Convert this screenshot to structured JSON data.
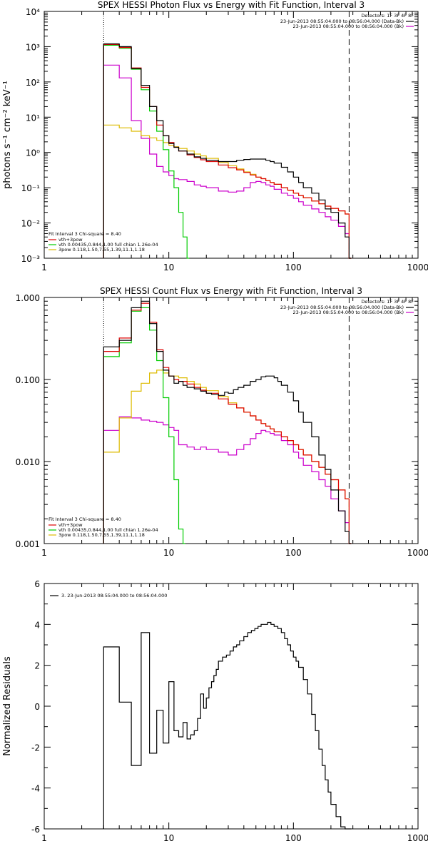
{
  "chart_data": [
    {
      "type": "line",
      "title": "SPEX HESSI Photon Flux vs Energy with Fit Function, Interval 3",
      "xlabel": "",
      "ylabel": "photons s⁻¹ cm⁻² keV⁻¹",
      "xscale": "log",
      "yscale": "log",
      "xlim": [
        1,
        1000
      ],
      "ylim": [
        0.001,
        10000
      ],
      "xticklabels": [
        "1",
        "10",
        "100",
        "1000"
      ],
      "yticklabels": [
        "10⁻³",
        "10⁻²",
        "10⁻¹",
        "10⁰",
        "10¹",
        "10²",
        "10³",
        "10⁴"
      ],
      "vlines": [
        3,
        280
      ],
      "detectors": "Detectors: 1F 3F 4F 8F",
      "legend_top": [
        {
          "text": "23-Jun-2013 08:55:04.000 to 08:56:04.000 (Data-Bk)",
          "color": "#000000"
        },
        {
          "text": "23-Jun-2013 08:55:04.000 to 08:56:04.000 (Bk)",
          "color": "#cc00cc"
        }
      ],
      "fit_header": "Fit Interval 3   Chi-square = 8.40",
      "legend_bottom": [
        {
          "text": "vth+3pow",
          "color": "#dd0000"
        },
        {
          "text": "vth 0.00435,0.844,1.00  full chian 1.26e-04",
          "color": "#00cc00"
        },
        {
          "text": "3pow 0.118,1.50,7.55,1.39,11.1,1.18",
          "color": "#ddbb00"
        }
      ],
      "series": [
        {
          "name": "Data-Bk",
          "color": "#000000",
          "x": [
            3,
            4,
            5,
            6,
            7,
            8,
            9,
            10,
            11,
            12,
            14,
            16,
            18,
            20,
            25,
            30,
            35,
            40,
            45,
            50,
            55,
            60,
            65,
            70,
            80,
            90,
            100,
            110,
            120,
            140,
            160,
            180,
            200,
            230,
            260,
            280
          ],
          "y": [
            1200,
            1000,
            240,
            80,
            20,
            8,
            3,
            1.8,
            1.4,
            1.1,
            0.9,
            0.75,
            0.68,
            0.6,
            0.55,
            0.55,
            0.6,
            0.63,
            0.65,
            0.65,
            0.65,
            0.6,
            0.55,
            0.5,
            0.38,
            0.28,
            0.2,
            0.14,
            0.1,
            0.07,
            0.045,
            0.025,
            0.02,
            0.01,
            0.004,
            0.001
          ]
        },
        {
          "name": "vth+3pow",
          "color": "#dd0000",
          "x": [
            3,
            4,
            5,
            6,
            7,
            8,
            9,
            10,
            11,
            12,
            14,
            16,
            18,
            20,
            25,
            30,
            35,
            40,
            45,
            50,
            55,
            60,
            65,
            70,
            80,
            90,
            100,
            110,
            120,
            140,
            160,
            180,
            200,
            230,
            260,
            280
          ],
          "y": [
            1150,
            950,
            250,
            70,
            20,
            6,
            3,
            1.9,
            1.4,
            1.1,
            0.85,
            0.72,
            0.62,
            0.55,
            0.44,
            0.37,
            0.32,
            0.27,
            0.23,
            0.2,
            0.18,
            0.16,
            0.14,
            0.125,
            0.1,
            0.085,
            0.07,
            0.06,
            0.052,
            0.042,
            0.035,
            0.03,
            0.026,
            0.022,
            0.018,
            0.001
          ]
        },
        {
          "name": "vth",
          "color": "#00cc00",
          "x": [
            3,
            4,
            5,
            6,
            7,
            8,
            9,
            10,
            11,
            12,
            13,
            14
          ],
          "y": [
            1100,
            900,
            230,
            60,
            15,
            4,
            1.2,
            0.3,
            0.1,
            0.02,
            0.004,
            0.001
          ]
        },
        {
          "name": "3pow",
          "color": "#ddbb00",
          "x": [
            3,
            4,
            5,
            6,
            7,
            8,
            9,
            10,
            11,
            12,
            14,
            16,
            18,
            20,
            25,
            30,
            35,
            40,
            45,
            50,
            55,
            60,
            65,
            70,
            80,
            90,
            100,
            110,
            120,
            140,
            160,
            180,
            200,
            230,
            260,
            280
          ],
          "y": [
            6,
            5,
            4,
            3,
            2.6,
            2.2,
            1.9,
            1.6,
            1.45,
            1.3,
            1.1,
            0.9,
            0.8,
            0.68,
            0.52,
            0.42,
            0.34,
            0.28,
            0.24,
            0.2,
            0.18,
            0.16,
            0.14,
            0.125,
            0.1,
            0.085,
            0.07,
            0.06,
            0.052,
            0.042,
            0.035,
            0.03,
            0.026,
            0.022,
            0.018,
            0.001
          ]
        },
        {
          "name": "Bk",
          "color": "#cc00cc",
          "x": [
            3,
            4,
            5,
            6,
            7,
            8,
            9,
            10,
            11,
            12,
            14,
            16,
            18,
            20,
            25,
            30,
            35,
            40,
            45,
            50,
            55,
            60,
            65,
            70,
            80,
            90,
            100,
            110,
            120,
            140,
            160,
            180,
            200,
            230,
            260,
            280
          ],
          "y": [
            300,
            130,
            8,
            2.5,
            0.9,
            0.4,
            0.28,
            0.22,
            0.18,
            0.17,
            0.15,
            0.12,
            0.11,
            0.1,
            0.08,
            0.075,
            0.08,
            0.1,
            0.14,
            0.15,
            0.14,
            0.12,
            0.11,
            0.09,
            0.07,
            0.06,
            0.05,
            0.04,
            0.032,
            0.025,
            0.02,
            0.015,
            0.012,
            0.008,
            0.005,
            0.001
          ]
        }
      ]
    },
    {
      "type": "line",
      "title": "SPEX HESSI Count Flux vs Energy with Fit Function, Interval 3",
      "xlabel": "",
      "ylabel": "",
      "xscale": "log",
      "yscale": "log",
      "xlim": [
        1,
        1000
      ],
      "ylim": [
        0.001,
        1
      ],
      "xticklabels": [
        "1",
        "10",
        "100",
        "1000"
      ],
      "yticklabels": [
        "0.001",
        "0.010",
        "0.100",
        "1.000"
      ],
      "vlines": [
        3,
        280
      ],
      "detectors": "Detectors: 1F 3F 4F 8F",
      "legend_top": [
        {
          "text": "23-Jun-2013 08:55:04.000 to 08:56:04.000 (Data-Bk)",
          "color": "#000000"
        },
        {
          "text": "23-Jun-2013 08:55:04.000 to 08:56:04.000 (Bk)",
          "color": "#cc00cc"
        }
      ],
      "fit_header": "Fit Interval 3   Chi-square = 8.40",
      "legend_bottom": [
        {
          "text": "vth+3pow",
          "color": "#dd0000"
        },
        {
          "text": "vth 0.00435,0.844,1.00  full chian 1.26e-04",
          "color": "#00cc00"
        },
        {
          "text": "3pow 0.118,1.50,7.55,1.39,11.1,1.18",
          "color": "#ddbb00"
        }
      ],
      "series": [
        {
          "name": "Data-Bk",
          "color": "#000000",
          "x": [
            3,
            4,
            5,
            6,
            7,
            8,
            9,
            10,
            11,
            12,
            13,
            14,
            15,
            16,
            18,
            20,
            22,
            25,
            28,
            30,
            33,
            36,
            40,
            45,
            50,
            55,
            60,
            65,
            70,
            75,
            80,
            90,
            100,
            110,
            120,
            140,
            160,
            180,
            200,
            230,
            260,
            280
          ],
          "y": [
            0.25,
            0.3,
            0.75,
            0.9,
            0.48,
            0.22,
            0.13,
            0.11,
            0.09,
            0.095,
            0.085,
            0.08,
            0.08,
            0.077,
            0.072,
            0.068,
            0.066,
            0.064,
            0.07,
            0.068,
            0.075,
            0.08,
            0.085,
            0.095,
            0.1,
            0.108,
            0.11,
            0.11,
            0.105,
            0.095,
            0.085,
            0.07,
            0.055,
            0.04,
            0.03,
            0.02,
            0.012,
            0.008,
            0.0045,
            0.0025,
            0.0014,
            0.001
          ]
        },
        {
          "name": "vth+3pow",
          "color": "#dd0000",
          "x": [
            3,
            4,
            5,
            6,
            7,
            8,
            9,
            10,
            11,
            12,
            14,
            16,
            18,
            20,
            25,
            30,
            35,
            40,
            45,
            50,
            55,
            60,
            65,
            70,
            80,
            90,
            100,
            110,
            120,
            140,
            160,
            180,
            200,
            230,
            260,
            280
          ],
          "y": [
            0.22,
            0.32,
            0.7,
            0.85,
            0.5,
            0.23,
            0.14,
            0.11,
            0.1,
            0.095,
            0.088,
            0.08,
            0.074,
            0.068,
            0.058,
            0.05,
            0.045,
            0.04,
            0.036,
            0.032,
            0.029,
            0.027,
            0.025,
            0.023,
            0.02,
            0.018,
            0.016,
            0.014,
            0.012,
            0.01,
            0.0085,
            0.007,
            0.006,
            0.0045,
            0.0035,
            0.001
          ]
        },
        {
          "name": "vth",
          "color": "#00cc00",
          "x": [
            3,
            4,
            5,
            6,
            7,
            8,
            9,
            10,
            11,
            12,
            13
          ],
          "y": [
            0.19,
            0.28,
            0.68,
            0.75,
            0.4,
            0.17,
            0.06,
            0.02,
            0.006,
            0.0015,
            0.001
          ]
        },
        {
          "name": "3pow",
          "color": "#ddbb00",
          "x": [
            3,
            4,
            5,
            6,
            7,
            8,
            9,
            10,
            11,
            12,
            14,
            16,
            18,
            20,
            25,
            30,
            35,
            40,
            45,
            50,
            55,
            60,
            65,
            70,
            80,
            90,
            100,
            110,
            120,
            140,
            160,
            180,
            200,
            230,
            260,
            280
          ],
          "y": [
            0.013,
            0.034,
            0.072,
            0.09,
            0.12,
            0.13,
            0.12,
            0.11,
            0.11,
            0.105,
            0.095,
            0.088,
            0.08,
            0.073,
            0.062,
            0.052,
            0.045,
            0.04,
            0.036,
            0.032,
            0.029,
            0.027,
            0.025,
            0.023,
            0.02,
            0.018,
            0.016,
            0.014,
            0.012,
            0.01,
            0.0085,
            0.007,
            0.006,
            0.0045,
            0.0035,
            0.001
          ]
        },
        {
          "name": "Bk",
          "color": "#cc00cc",
          "x": [
            3,
            4,
            5,
            6,
            7,
            8,
            9,
            10,
            11,
            12,
            14,
            16,
            18,
            20,
            25,
            30,
            35,
            40,
            45,
            50,
            55,
            60,
            65,
            70,
            80,
            90,
            100,
            110,
            120,
            140,
            160,
            180,
            200,
            230,
            260,
            280
          ],
          "y": [
            0.024,
            0.035,
            0.034,
            0.032,
            0.031,
            0.03,
            0.028,
            0.026,
            0.024,
            0.016,
            0.015,
            0.014,
            0.015,
            0.014,
            0.013,
            0.012,
            0.014,
            0.016,
            0.019,
            0.022,
            0.024,
            0.023,
            0.022,
            0.021,
            0.018,
            0.016,
            0.013,
            0.011,
            0.009,
            0.0075,
            0.006,
            0.005,
            0.0035,
            0.0025,
            0.0018,
            0.001
          ]
        }
      ]
    },
    {
      "type": "line",
      "title": "",
      "xlabel": "",
      "ylabel": "Normalized Residuals",
      "xscale": "log",
      "yscale": "linear",
      "xlim": [
        1,
        1000
      ],
      "ylim": [
        -6,
        6
      ],
      "xticklabels": [
        "1",
        "10",
        "100",
        "1000"
      ],
      "yticklabels": [
        "-6",
        "-4",
        "-2",
        "0",
        "2",
        "4",
        "6"
      ],
      "legend": [
        {
          "text": "3. 23-Jun-2013 08:55:04.000 to 08:56:04.000",
          "color": "#000000"
        }
      ],
      "series": [
        {
          "name": "3. 23-Jun-2013 08:55:04.000 to 08:56:04.000",
          "color": "#000000",
          "x": [
            3,
            4,
            5,
            6,
            7,
            8,
            9,
            10,
            11,
            12,
            13,
            14,
            15,
            16,
            17,
            18,
            19,
            20,
            21,
            22,
            23,
            24,
            25,
            27,
            29,
            31,
            33,
            35,
            37,
            40,
            43,
            46,
            49,
            52,
            55,
            58,
            62,
            66,
            70,
            75,
            80,
            85,
            90,
            95,
            100,
            105,
            110,
            120,
            130,
            140,
            150,
            160,
            170,
            180,
            190,
            200,
            220,
            240,
            260,
            280
          ],
          "y": [
            2.9,
            0.2,
            -2.9,
            3.6,
            -2.3,
            -0.2,
            -1.8,
            1.2,
            -1.2,
            -1.5,
            -0.8,
            -1.6,
            -1.4,
            -1.2,
            -0.6,
            0.6,
            -0.1,
            0.4,
            0.9,
            1.2,
            1.5,
            1.8,
            2.2,
            2.4,
            2.5,
            2.7,
            2.9,
            3.0,
            3.2,
            3.4,
            3.6,
            3.7,
            3.8,
            3.9,
            4.0,
            4.0,
            4.1,
            4.0,
            3.9,
            3.8,
            3.6,
            3.3,
            3.0,
            2.7,
            2.4,
            2.2,
            1.9,
            1.3,
            0.6,
            -0.4,
            -1.2,
            -2.1,
            -2.9,
            -3.6,
            -4.2,
            -4.8,
            -5.4,
            -5.9,
            -6.0,
            -6.0
          ]
        }
      ]
    }
  ]
}
